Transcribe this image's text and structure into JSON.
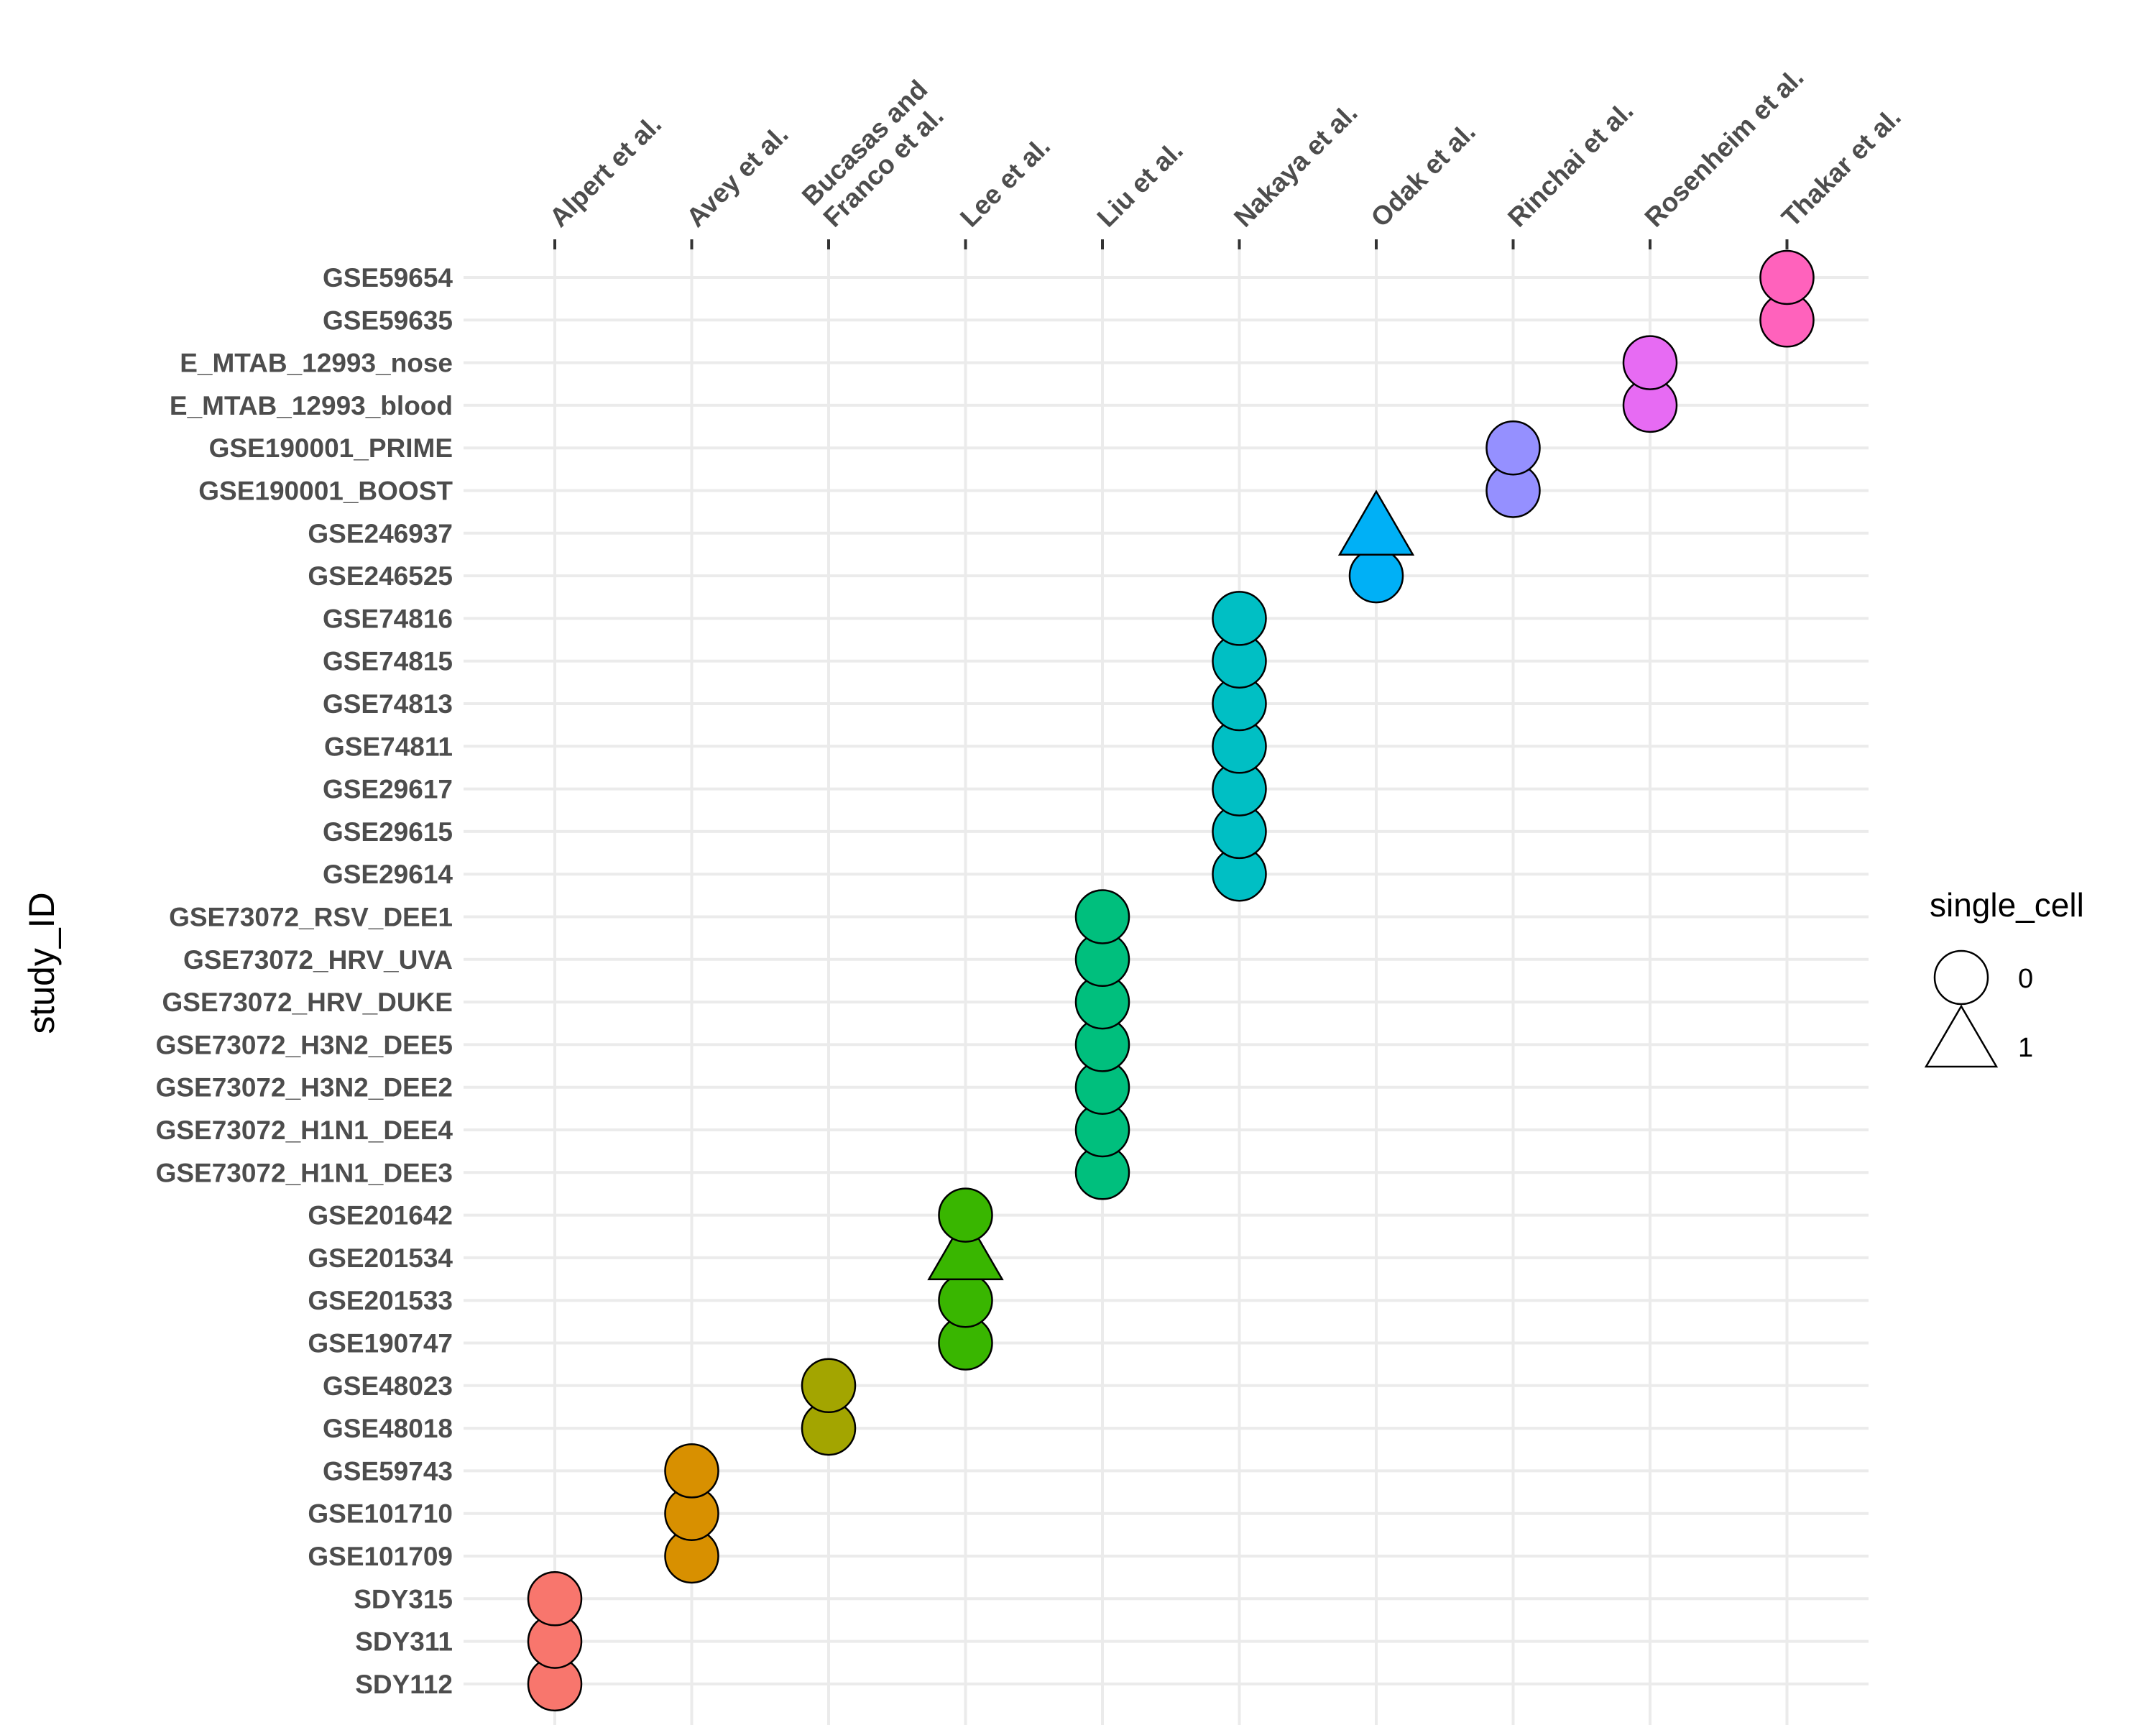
{
  "chart_data": {
    "type": "scatter",
    "title": "",
    "xlabel": "",
    "ylabel": "study_ID",
    "grid": true,
    "legend_position": "right",
    "x_categories": [
      "Alpert et al.",
      "Avey et al.",
      "Bucasas and\nFranco et al.",
      "Lee et al.",
      "Liu et al.",
      "Nakaya et al.",
      "Odak et al.",
      "Rinchai et al.",
      "Rosenheim et al.",
      "Thakar et al."
    ],
    "y_categories": [
      "SDY112",
      "SDY311",
      "SDY315",
      "GSE101709",
      "GSE101710",
      "GSE59743",
      "GSE48018",
      "GSE48023",
      "GSE190747",
      "GSE201533",
      "GSE201534",
      "GSE201642",
      "GSE73072_H1N1_DEE3",
      "GSE73072_H1N1_DEE4",
      "GSE73072_H3N2_DEE2",
      "GSE73072_H3N2_DEE5",
      "GSE73072_HRV_DUKE",
      "GSE73072_HRV_UVA",
      "GSE73072_RSV_DEE1",
      "GSE29614",
      "GSE29615",
      "GSE29617",
      "GSE74811",
      "GSE74813",
      "GSE74815",
      "GSE74816",
      "GSE246525",
      "GSE246937",
      "GSE190001_BOOST",
      "GSE190001_PRIME",
      "E_MTAB_12993_blood",
      "E_MTAB_12993_nose",
      "GSE59635",
      "GSE59654"
    ],
    "colors": {
      "Alpert et al.": "#F8766D",
      "Avey et al.": "#D89000",
      "Bucasas and\nFranco et al.": "#A3A500",
      "Lee et al.": "#39B600",
      "Liu et al.": "#00BF7D",
      "Nakaya et al.": "#00BFC4",
      "Odak et al.": "#00B0F6",
      "Rinchai et al.": "#9590FF",
      "Rosenheim et al.": "#E76BF3",
      "Thakar et al.": "#FF62BC"
    },
    "points": [
      {
        "study": "Alpert et al.",
        "id": "SDY112",
        "single_cell": 0
      },
      {
        "study": "Alpert et al.",
        "id": "SDY311",
        "single_cell": 0
      },
      {
        "study": "Alpert et al.",
        "id": "SDY315",
        "single_cell": 0
      },
      {
        "study": "Avey et al.",
        "id": "GSE101709",
        "single_cell": 0
      },
      {
        "study": "Avey et al.",
        "id": "GSE101710",
        "single_cell": 0
      },
      {
        "study": "Avey et al.",
        "id": "GSE59743",
        "single_cell": 0
      },
      {
        "study": "Bucasas and\nFranco et al.",
        "id": "GSE48018",
        "single_cell": 0
      },
      {
        "study": "Bucasas and\nFranco et al.",
        "id": "GSE48023",
        "single_cell": 0
      },
      {
        "study": "Lee et al.",
        "id": "GSE190747",
        "single_cell": 0
      },
      {
        "study": "Lee et al.",
        "id": "GSE201533",
        "single_cell": 0
      },
      {
        "study": "Lee et al.",
        "id": "GSE201534",
        "single_cell": 1
      },
      {
        "study": "Lee et al.",
        "id": "GSE201642",
        "single_cell": 0
      },
      {
        "study": "Liu et al.",
        "id": "GSE73072_H1N1_DEE3",
        "single_cell": 0
      },
      {
        "study": "Liu et al.",
        "id": "GSE73072_H1N1_DEE4",
        "single_cell": 0
      },
      {
        "study": "Liu et al.",
        "id": "GSE73072_H3N2_DEE2",
        "single_cell": 0
      },
      {
        "study": "Liu et al.",
        "id": "GSE73072_H3N2_DEE5",
        "single_cell": 0
      },
      {
        "study": "Liu et al.",
        "id": "GSE73072_HRV_DUKE",
        "single_cell": 0
      },
      {
        "study": "Liu et al.",
        "id": "GSE73072_HRV_UVA",
        "single_cell": 0
      },
      {
        "study": "Liu et al.",
        "id": "GSE73072_RSV_DEE1",
        "single_cell": 0
      },
      {
        "study": "Nakaya et al.",
        "id": "GSE29614",
        "single_cell": 0
      },
      {
        "study": "Nakaya et al.",
        "id": "GSE29615",
        "single_cell": 0
      },
      {
        "study": "Nakaya et al.",
        "id": "GSE29617",
        "single_cell": 0
      },
      {
        "study": "Nakaya et al.",
        "id": "GSE74811",
        "single_cell": 0
      },
      {
        "study": "Nakaya et al.",
        "id": "GSE74813",
        "single_cell": 0
      },
      {
        "study": "Nakaya et al.",
        "id": "GSE74815",
        "single_cell": 0
      },
      {
        "study": "Nakaya et al.",
        "id": "GSE74816",
        "single_cell": 0
      },
      {
        "study": "Odak et al.",
        "id": "GSE246525",
        "single_cell": 0
      },
      {
        "study": "Odak et al.",
        "id": "GSE246937",
        "single_cell": 1
      },
      {
        "study": "Rinchai et al.",
        "id": "GSE190001_BOOST",
        "single_cell": 0
      },
      {
        "study": "Rinchai et al.",
        "id": "GSE190001_PRIME",
        "single_cell": 0
      },
      {
        "study": "Rosenheim et al.",
        "id": "E_MTAB_12993_blood",
        "single_cell": 0
      },
      {
        "study": "Rosenheim et al.",
        "id": "E_MTAB_12993_nose",
        "single_cell": 0
      },
      {
        "study": "Thakar et al.",
        "id": "GSE59635",
        "single_cell": 0
      },
      {
        "study": "Thakar et al.",
        "id": "GSE59654",
        "single_cell": 0
      }
    ],
    "legend": {
      "title": "single_cell",
      "entries": [
        {
          "label": "0",
          "shape": "circle"
        },
        {
          "label": "1",
          "shape": "triangle"
        }
      ]
    }
  }
}
